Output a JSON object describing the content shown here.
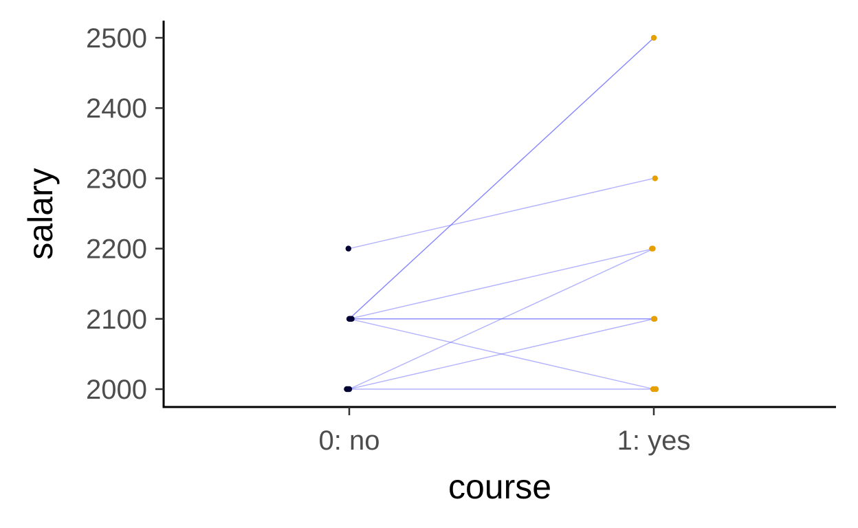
{
  "chart_data": {
    "type": "scatter",
    "title": "",
    "xlabel": "course",
    "ylabel": "salary",
    "categories": [
      "0: no",
      "1: yes"
    ],
    "yticks": [
      2000,
      2100,
      2200,
      2300,
      2400,
      2500
    ],
    "ylim": [
      1975,
      2522
    ],
    "grid": false,
    "legend": "none",
    "colors": {
      "group0_points": "#000033",
      "group1_points": "#E69F00",
      "lines": "#6666ff"
    },
    "pairs": [
      {
        "no": 2100,
        "yes": 2500,
        "strong": true
      },
      {
        "no": 2200,
        "yes": 2300
      },
      {
        "no": 2100,
        "yes": 2200
      },
      {
        "no": 2000,
        "yes": 2200
      },
      {
        "no": 2100,
        "yes": 2100,
        "strong": true
      },
      {
        "no": 2000,
        "yes": 2100
      },
      {
        "no": 2100,
        "yes": 2000
      },
      {
        "no": 2000,
        "yes": 2000
      }
    ]
  }
}
